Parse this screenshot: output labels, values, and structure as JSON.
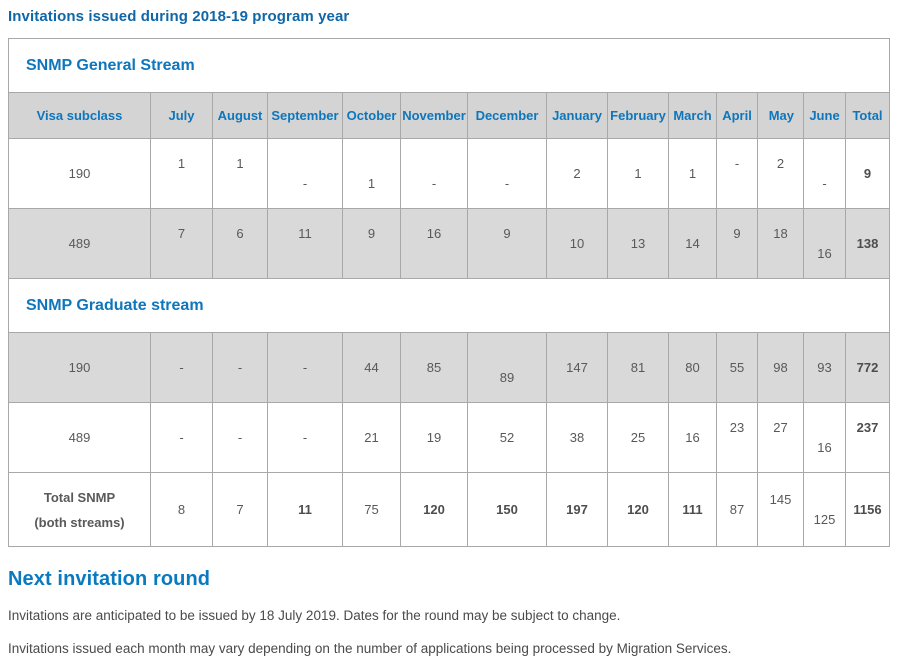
{
  "page": {
    "title": "Invitations issued during 2018-19 program year"
  },
  "colors": {
    "title_blue": "#0f67a7",
    "accent_blue": "#0e76bc",
    "heading_blue": "#0a7ac0",
    "header_bg": "#d4d4d4",
    "row_shade_bg": "#d9d9d9",
    "border_grey": "#a8a8a8",
    "cell_text": "#595959",
    "body_text": "#4a4a4a"
  },
  "table": {
    "columns": [
      "Visa subclass",
      "July",
      "August",
      "September",
      "October",
      "November",
      "December",
      "January",
      "February",
      "March",
      "April",
      "May",
      "June",
      "Total"
    ],
    "rows": [
      {
        "type": "section",
        "label": "SNMP General Stream"
      },
      {
        "type": "header"
      },
      {
        "type": "data",
        "shaded": false,
        "label_lines": [
          "190"
        ],
        "label_style": "center",
        "cells": [
          {
            "v": "1",
            "y": "t"
          },
          {
            "v": "1",
            "y": "t"
          },
          {
            "v": "-",
            "y": "b"
          },
          {
            "v": "1",
            "y": "b"
          },
          {
            "v": "-",
            "y": "b"
          },
          {
            "v": "-",
            "y": "b"
          },
          {
            "v": "2"
          },
          {
            "v": "1"
          },
          {
            "v": "1"
          },
          {
            "v": "-",
            "y": "t"
          },
          {
            "v": "2",
            "y": "t"
          },
          {
            "v": "-",
            "y": "b"
          },
          {
            "v": "9",
            "bold": true
          }
        ]
      },
      {
        "type": "data",
        "shaded": true,
        "label_lines": [
          "489"
        ],
        "label_style": "center",
        "cells": [
          {
            "v": "7",
            "y": "t"
          },
          {
            "v": "6",
            "y": "t"
          },
          {
            "v": "11",
            "y": "t"
          },
          {
            "v": "9",
            "y": "t"
          },
          {
            "v": "16",
            "y": "t"
          },
          {
            "v": "9",
            "y": "t"
          },
          {
            "v": "10"
          },
          {
            "v": "13"
          },
          {
            "v": "14"
          },
          {
            "v": "9",
            "y": "t"
          },
          {
            "v": "18",
            "y": "t"
          },
          {
            "v": "16",
            "y": "b"
          },
          {
            "v": "138",
            "bold": true
          }
        ]
      },
      {
        "type": "section",
        "label": "SNMP Graduate stream"
      },
      {
        "type": "data",
        "shaded": true,
        "label_lines": [
          "190"
        ],
        "label_style": "left",
        "cells": [
          {
            "v": "-"
          },
          {
            "v": "-"
          },
          {
            "v": "-"
          },
          {
            "v": "44"
          },
          {
            "v": "85"
          },
          {
            "v": "89",
            "y": "b"
          },
          {
            "v": "147"
          },
          {
            "v": "81"
          },
          {
            "v": "80"
          },
          {
            "v": "55"
          },
          {
            "v": "98"
          },
          {
            "v": "93"
          },
          {
            "v": "772",
            "bold": true
          }
        ]
      },
      {
        "type": "data",
        "shaded": false,
        "label_lines": [
          "489"
        ],
        "label_style": "left",
        "cells": [
          {
            "v": "-"
          },
          {
            "v": "-"
          },
          {
            "v": "-"
          },
          {
            "v": "21"
          },
          {
            "v": "19"
          },
          {
            "v": "52"
          },
          {
            "v": "38"
          },
          {
            "v": "25"
          },
          {
            "v": "16"
          },
          {
            "v": "23",
            "y": "t"
          },
          {
            "v": "27",
            "y": "t"
          },
          {
            "v": "16",
            "y": "b"
          },
          {
            "v": "237",
            "bold": true,
            "y": "t"
          }
        ]
      },
      {
        "type": "data",
        "shaded": false,
        "total": true,
        "label_lines": [
          "Total SNMP",
          "(both streams)"
        ],
        "label_style": "total",
        "cells": [
          {
            "v": "8"
          },
          {
            "v": "7"
          },
          {
            "v": "11",
            "bold": true
          },
          {
            "v": "75"
          },
          {
            "v": "120",
            "bold": true
          },
          {
            "v": "150",
            "bold": true
          },
          {
            "v": "197",
            "bold": true
          },
          {
            "v": "120",
            "bold": true
          },
          {
            "v": "111",
            "bold": true
          },
          {
            "v": "87"
          },
          {
            "v": "145",
            "y": "t"
          },
          {
            "v": "125",
            "y": "b"
          },
          {
            "v": "1156",
            "bold": true
          }
        ]
      }
    ]
  },
  "next_round": {
    "heading": "Next invitation round",
    "paragraphs": [
      "Invitations are anticipated to be issued by 18 July 2019. Dates for the round may be subject to change.",
      "Invitations issued each month may vary depending on the number of applications being processed by Migration Services."
    ]
  }
}
